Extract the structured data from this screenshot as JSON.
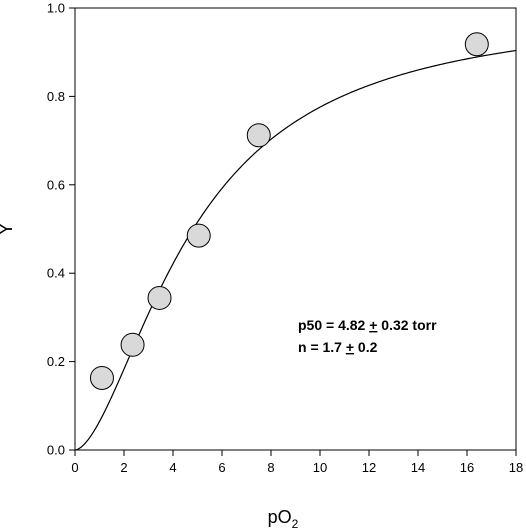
{
  "chart_data": {
    "type": "scatter",
    "xlabel": "pO",
    "xlabel_sub": "2",
    "ylabel": "Y",
    "xlim": [
      0,
      18
    ],
    "ylim": [
      0,
      1
    ],
    "xticks": [
      0,
      2,
      4,
      6,
      8,
      10,
      12,
      14,
      16,
      18
    ],
    "yticks": [
      0,
      0.2,
      0.4,
      0.6,
      0.8,
      1
    ],
    "ytick_labels": [
      "0.0",
      "0.2",
      "0.4",
      "0.6",
      "0.8",
      "1.0"
    ],
    "grid": false,
    "series": [
      {
        "kind": "points",
        "marker": "circle",
        "fill": "#d9d9d9",
        "x": [
          1.1,
          2.35,
          3.45,
          5.05,
          7.5,
          16.4
        ],
        "y": [
          0.163,
          0.238,
          0.344,
          0.485,
          0.712,
          0.918
        ]
      },
      {
        "kind": "fit-line",
        "model": "hill",
        "p50": 4.82,
        "n": 1.7,
        "color": "#000000"
      }
    ],
    "annotations": [
      {
        "parts": [
          "p50 = 4.82  ",
          "+",
          " 0.32   torr"
        ]
      },
      {
        "parts": [
          "n =   1.7 ",
          "+",
          "   0.2"
        ]
      }
    ]
  }
}
